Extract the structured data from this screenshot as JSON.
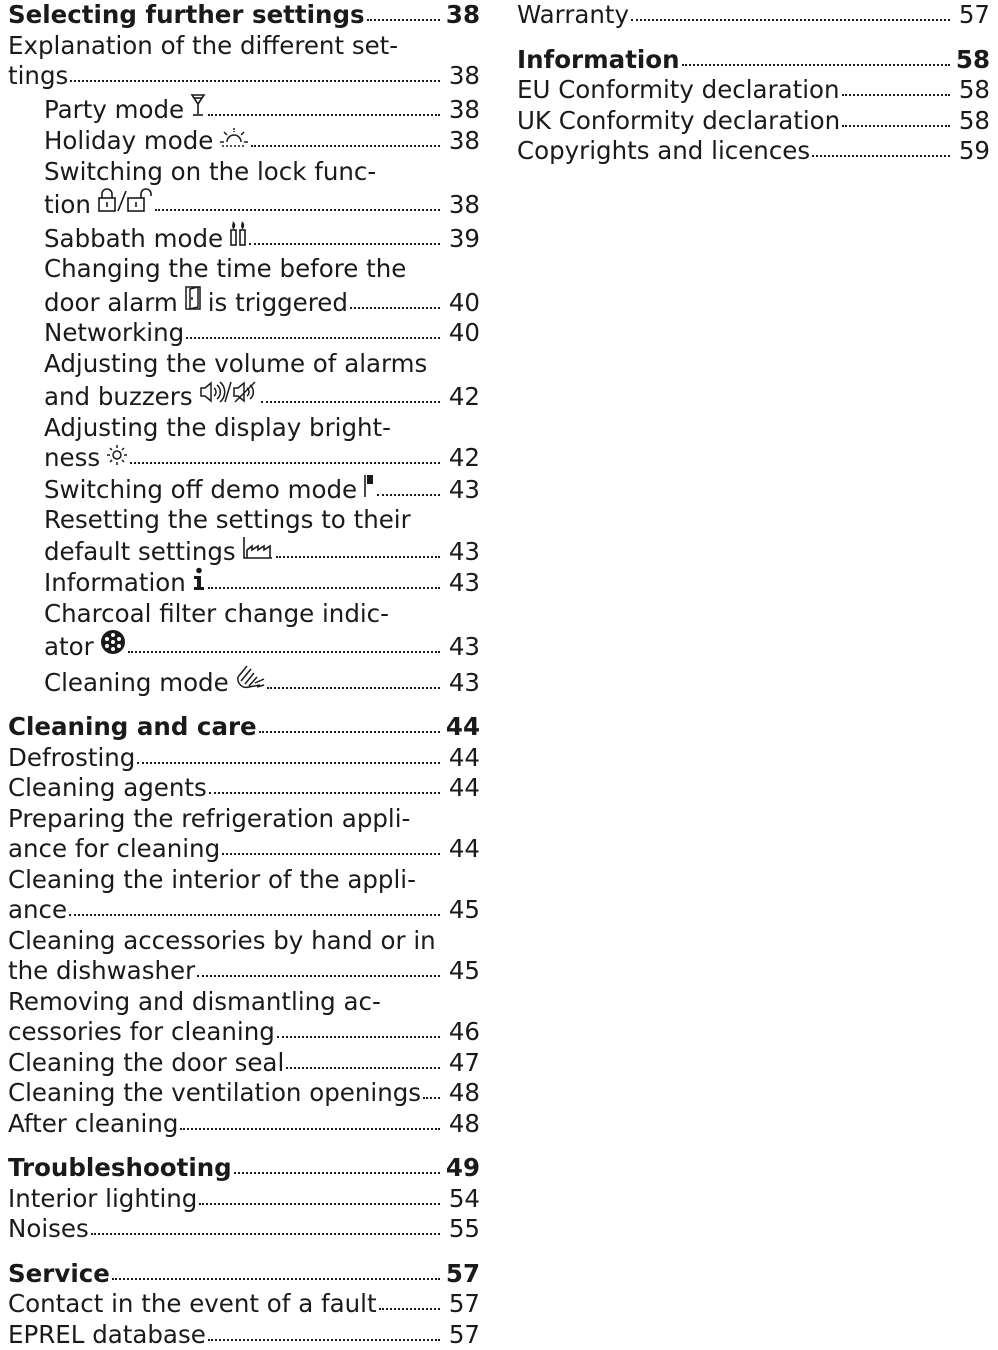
{
  "left_column": [
    {
      "lines": [
        "Selecting further settings"
      ],
      "page": "38",
      "bold": true,
      "level": 1
    },
    {
      "lines": [
        "Explanation of the different set-",
        "tings"
      ],
      "page": "38",
      "level": 1
    },
    {
      "lines": [
        "Party mode"
      ],
      "page": "38",
      "level": 2,
      "icon": "party-glass-icon"
    },
    {
      "lines": [
        "Holiday mode"
      ],
      "page": "38",
      "level": 2,
      "icon": "holiday-sun-icon"
    },
    {
      "lines": [
        "Switching on the lock func-",
        "tion"
      ],
      "page": "38",
      "level": 2,
      "icon": "lock-unlock-icon"
    },
    {
      "lines": [
        "Sabbath mode"
      ],
      "page": "39",
      "level": 2,
      "icon": "sabbath-candles-icon"
    },
    {
      "lines": [
        "Changing the time before the",
        "door alarm",
        "is triggered"
      ],
      "page": "40",
      "level": 2,
      "icon": "door-icon"
    },
    {
      "lines": [
        "Networking"
      ],
      "page": "40",
      "level": 2
    },
    {
      "lines": [
        "Adjusting the volume of alarms",
        "and buzzers"
      ],
      "page": "42",
      "level": 2,
      "icon": "volume-mute-icon"
    },
    {
      "lines": [
        "Adjusting the display bright-",
        "ness"
      ],
      "page": "42",
      "level": 2,
      "icon": "brightness-icon"
    },
    {
      "lines": [
        "Switching off demo mode"
      ],
      "page": "43",
      "level": 2,
      "icon": "demo-flag-icon"
    },
    {
      "lines": [
        "Resetting the settings to their",
        "default settings"
      ],
      "page": "43",
      "level": 2,
      "icon": "factory-icon"
    },
    {
      "lines": [
        "Information"
      ],
      "page": "43",
      "level": 2,
      "icon": "info-icon"
    },
    {
      "lines": [
        "Charcoal filter change indic-",
        "ator"
      ],
      "page": "43",
      "level": 2,
      "icon": "filter-icon"
    },
    {
      "lines": [
        "Cleaning mode"
      ],
      "page": "43",
      "level": 2,
      "icon": "cleaning-hand-icon"
    },
    {
      "lines": [
        "Cleaning and care"
      ],
      "page": "44",
      "bold": true,
      "level": 1,
      "gap": true
    },
    {
      "lines": [
        "Defrosting"
      ],
      "page": "44",
      "level": 1
    },
    {
      "lines": [
        "Cleaning agents"
      ],
      "page": "44",
      "level": 1
    },
    {
      "lines": [
        "Preparing the refrigeration appli-",
        "ance for cleaning"
      ],
      "page": "44",
      "level": 1
    },
    {
      "lines": [
        "Cleaning the interior of the appli-",
        "ance"
      ],
      "page": "45",
      "level": 1
    },
    {
      "lines": [
        "Cleaning accessories by hand or in",
        "the dishwasher"
      ],
      "page": "45",
      "level": 1
    },
    {
      "lines": [
        "Removing and dismantling ac-",
        "cessories for cleaning"
      ],
      "page": "46",
      "level": 1
    },
    {
      "lines": [
        "Cleaning the door seal"
      ],
      "page": "47",
      "level": 1
    },
    {
      "lines": [
        "Cleaning the ventilation openings"
      ],
      "page": "48",
      "level": 1
    },
    {
      "lines": [
        "After cleaning"
      ],
      "page": "48",
      "level": 1
    },
    {
      "lines": [
        "Troubleshooting"
      ],
      "page": "49",
      "bold": true,
      "level": 1,
      "gap": true
    },
    {
      "lines": [
        "Interior lighting"
      ],
      "page": "54",
      "level": 1
    },
    {
      "lines": [
        "Noises"
      ],
      "page": "55",
      "level": 1
    },
    {
      "lines": [
        "Service"
      ],
      "page": "57",
      "bold": true,
      "level": 1,
      "gap": true
    },
    {
      "lines": [
        "Contact in the event of a fault"
      ],
      "page": "57",
      "level": 1
    },
    {
      "lines": [
        "EPREL database"
      ],
      "page": "57",
      "level": 1
    }
  ],
  "right_column": [
    {
      "lines": [
        "Warranty"
      ],
      "page": "57",
      "level": 1
    },
    {
      "lines": [
        "Information"
      ],
      "page": "58",
      "bold": true,
      "level": 1,
      "gap": true
    },
    {
      "lines": [
        "EU Conformity declaration"
      ],
      "page": "58",
      "level": 1
    },
    {
      "lines": [
        "UK Conformity declaration"
      ],
      "page": "58",
      "level": 1
    },
    {
      "lines": [
        "Copyrights and licences"
      ],
      "page": "59",
      "level": 1
    }
  ]
}
